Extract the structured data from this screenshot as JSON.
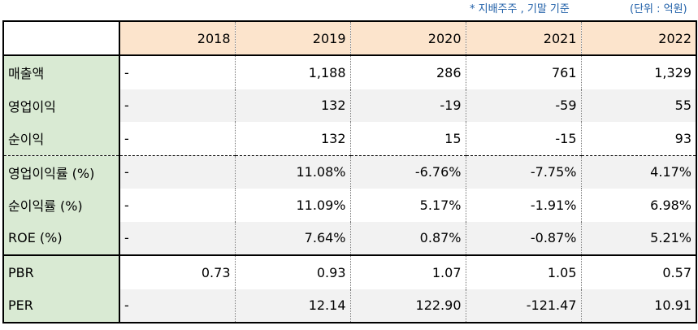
{
  "notes": {
    "basis": "* 지배주주 , 기말 기준",
    "unit": "(단위 : 억원)"
  },
  "table": {
    "years": [
      "2018",
      "2019",
      "2020",
      "2021",
      "2022"
    ],
    "rows": [
      {
        "label": "매출액",
        "values": [
          "-",
          "1,188",
          "286",
          "761",
          "1,329"
        ]
      },
      {
        "label": "영업이익",
        "values": [
          "-",
          "132",
          "-19",
          "-59",
          "55"
        ]
      },
      {
        "label": "순이익",
        "values": [
          "-",
          "132",
          "15",
          "-15",
          "93"
        ]
      },
      {
        "label": "영업이익률 (%)",
        "values": [
          "-",
          "11.08%",
          "-6.76%",
          "-7.75%",
          "4.17%"
        ]
      },
      {
        "label": "순이익률 (%)",
        "values": [
          "-",
          "11.09%",
          "5.17%",
          "-1.91%",
          "6.98%"
        ]
      },
      {
        "label": "ROE (%)",
        "values": [
          "-",
          "7.64%",
          "0.87%",
          "-0.87%",
          "5.21%"
        ]
      },
      {
        "label": "PBR",
        "values": [
          "0.73",
          "0.93",
          "1.07",
          "1.05",
          "0.57"
        ]
      },
      {
        "label": "PER",
        "values": [
          "-",
          "12.14",
          "122.90",
          "-121.47",
          "10.91"
        ]
      }
    ]
  },
  "colors": {
    "header_bg": "#fce4cc",
    "label_bg": "#d9ead3",
    "negative_text": "#1a2bd6",
    "note_text": "#1f5fa8"
  }
}
